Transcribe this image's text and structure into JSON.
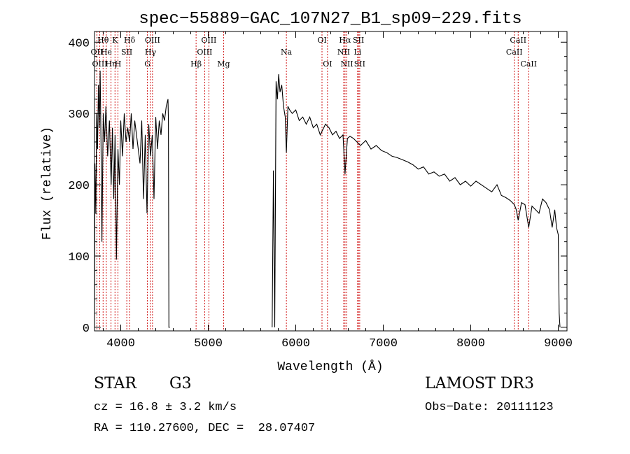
{
  "chart_data": {
    "type": "line",
    "title": "spec−55889−GAC_107N27_B1_sp09−229.fits",
    "xlabel": "Wavelength (Å)",
    "ylabel": "Flux (relative)",
    "xlim": [
      3700,
      9100
    ],
    "ylim": [
      -5,
      415
    ],
    "x_ticks": [
      4000,
      5000,
      6000,
      7000,
      8000,
      9000
    ],
    "y_ticks": [
      0,
      100,
      200,
      300,
      400
    ],
    "grid": false,
    "line_color": "#000000",
    "marker_color": "#cc0000",
    "series": [
      {
        "x": [
          3700,
          3705,
          3715,
          3725,
          3735,
          3745,
          3755,
          3765,
          3775,
          3785,
          3800,
          3815,
          3830,
          3850,
          3870,
          3890,
          3905,
          3920,
          3935,
          3950,
          3968,
          3985,
          4000,
          4020,
          4040,
          4060,
          4080,
          4101,
          4120,
          4140,
          4160,
          4180,
          4200,
          4220,
          4240,
          4260,
          4280,
          4300,
          4320,
          4340,
          4360,
          4380,
          4400,
          4420,
          4440,
          4460,
          4480,
          4500,
          4520,
          4540,
          4545,
          4550,
          4560
        ],
        "y": [
          0,
          230,
          160,
          300,
          250,
          340,
          280,
          360,
          250,
          120,
          300,
          260,
          310,
          240,
          290,
          200,
          280,
          180,
          270,
          95,
          250,
          200,
          290,
          240,
          300,
          260,
          280,
          260,
          300,
          250,
          290,
          270,
          250,
          230,
          290,
          180,
          270,
          160,
          285,
          240,
          270,
          180,
          295,
          250,
          290,
          270,
          300,
          290,
          310,
          320,
          290,
          0,
          0
        ]
      },
      {
        "x": [
          5730,
          5745,
          5760,
          5775,
          5790,
          5805,
          5820,
          5840,
          5860,
          5880,
          5893,
          5910,
          5930,
          5960,
          6000,
          6040,
          6080,
          6120,
          6160,
          6200,
          6240,
          6280,
          6300,
          6340,
          6380,
          6420,
          6460,
          6500,
          6540,
          6563,
          6590,
          6620,
          6660,
          6700,
          6740,
          6800,
          6860,
          6920,
          6980,
          7040,
          7100,
          7160,
          7220,
          7280,
          7340,
          7400,
          7460,
          7520,
          7580,
          7640,
          7700,
          7760,
          7820,
          7880,
          7940,
          8000,
          8060,
          8120,
          8180,
          8240,
          8300,
          8350,
          8400,
          8450,
          8498,
          8520,
          8542,
          8580,
          8620,
          8662,
          8700,
          8740,
          8780,
          8820,
          8860,
          8900,
          8930,
          8960,
          8980,
          9000,
          9010,
          9020
        ],
        "y": [
          0,
          220,
          0,
          345,
          320,
          355,
          330,
          340,
          310,
          295,
          245,
          310,
          305,
          300,
          305,
          290,
          295,
          285,
          295,
          280,
          285,
          270,
          275,
          285,
          280,
          270,
          275,
          265,
          270,
          215,
          265,
          268,
          265,
          260,
          255,
          262,
          250,
          255,
          248,
          245,
          240,
          238,
          235,
          232,
          228,
          222,
          225,
          215,
          218,
          212,
          215,
          205,
          210,
          200,
          205,
          198,
          205,
          200,
          195,
          190,
          200,
          185,
          182,
          178,
          172,
          165,
          150,
          175,
          172,
          140,
          170,
          165,
          160,
          180,
          175,
          165,
          140,
          165,
          140,
          130,
          20,
          0
        ]
      }
    ],
    "lines": [
      {
        "label": "Hθ",
        "x": 3798,
        "row": 1
      },
      {
        "label": "OII",
        "x": 3727,
        "row": 2
      },
      {
        "label": "OIII",
        "x": 3760,
        "row": 3
      },
      {
        "label": "He",
        "x": 3835,
        "row": 2
      },
      {
        "label": "Hη",
        "x": 3889,
        "row": 3
      },
      {
        "label": "K",
        "x": 3934,
        "row": 1
      },
      {
        "label": "SII",
        "x": 4069,
        "row": 2
      },
      {
        "label": "H",
        "x": 3968,
        "row": 3
      },
      {
        "label": "Hδ",
        "x": 4101,
        "row": 1
      },
      {
        "label": "OIII",
        "x": 4363,
        "row": 1
      },
      {
        "label": "Hγ",
        "x": 4340,
        "row": 2
      },
      {
        "label": "G",
        "x": 4305,
        "row": 3
      },
      {
        "label": "Hβ",
        "x": 4861,
        "row": 3
      },
      {
        "label": "OIII",
        "x": 5007,
        "row": 1
      },
      {
        "label": "OIII",
        "x": 4959,
        "row": 2
      },
      {
        "label": "Mg",
        "x": 5175,
        "row": 3
      },
      {
        "label": "Na",
        "x": 5893,
        "row": 2
      },
      {
        "label": "OI",
        "x": 6300,
        "row": 1
      },
      {
        "label": "OI",
        "x": 6363,
        "row": 3
      },
      {
        "label": "Hα",
        "x": 6563,
        "row": 1
      },
      {
        "label": "NII",
        "x": 6548,
        "row": 2
      },
      {
        "label": "NII",
        "x": 6584,
        "row": 3
      },
      {
        "label": "SII",
        "x": 6717,
        "row": 1
      },
      {
        "label": "Li",
        "x": 6707,
        "row": 2
      },
      {
        "label": "SII",
        "x": 6731,
        "row": 3
      },
      {
        "label": "CaII",
        "x": 8542,
        "row": 1
      },
      {
        "label": "CaII",
        "x": 8498,
        "row": 2
      },
      {
        "label": "CaII",
        "x": 8662,
        "row": 3
      }
    ]
  },
  "footer": {
    "class": "STAR",
    "subclass": "G3",
    "survey": "LAMOST DR3",
    "redshift": "cz = 16.8 ± 3.2 km/s",
    "obs_date": "Obs−Date: 20111123",
    "coords": "RA = 110.27600, DEC =  28.07407"
  }
}
